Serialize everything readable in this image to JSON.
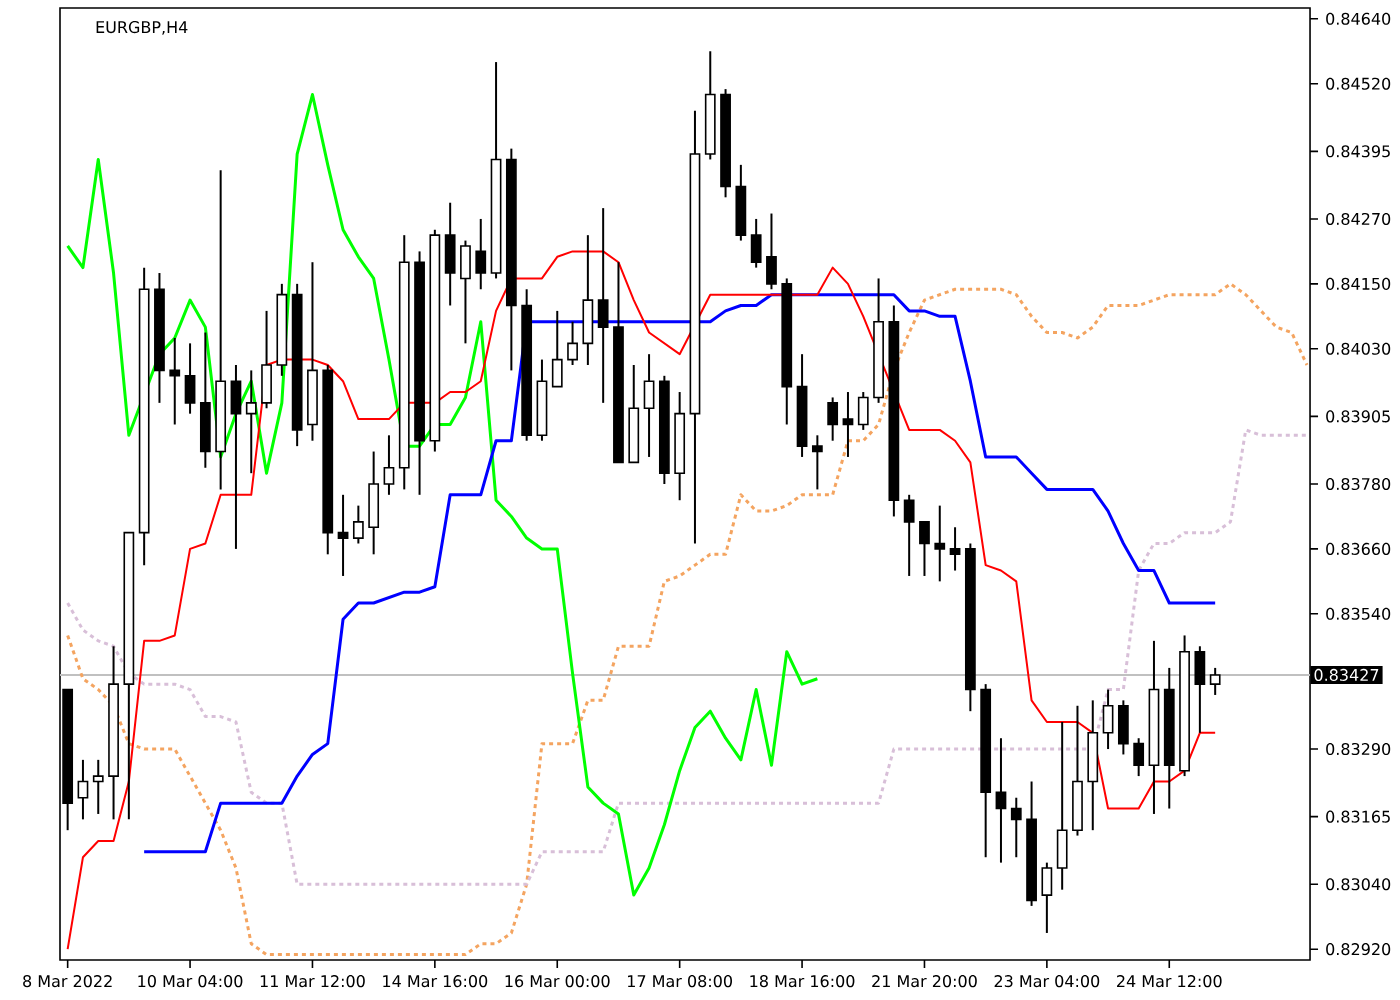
{
  "chart_data": {
    "type": "candlestick",
    "title": "EURGBP,H4",
    "categories": [
      "8 Mar 2022",
      null,
      null,
      null,
      null,
      null,
      null,
      null,
      "10 Mar 04:00",
      null,
      null,
      null,
      null,
      null,
      null,
      null,
      "11 Mar 12:00",
      null,
      null,
      null,
      null,
      null,
      null,
      null,
      "14 Mar 16:00",
      null,
      null,
      null,
      null,
      null,
      null,
      null,
      "16 Mar 00:00",
      null,
      null,
      null,
      null,
      null,
      null,
      null,
      "17 Mar 08:00",
      null,
      null,
      null,
      null,
      null,
      null,
      null,
      "18 Mar 16:00",
      null,
      null,
      null,
      null,
      null,
      null,
      null,
      "21 Mar 20:00",
      null,
      null,
      null,
      null,
      null,
      null,
      null,
      "23 Mar 04:00",
      null,
      null,
      null,
      null,
      null,
      null,
      null,
      "24 Mar 12:00",
      null,
      null,
      null,
      null,
      null,
      null,
      null,
      null,
      null
    ],
    "ohlc": [
      [
        0.834,
        0.834,
        0.8314,
        0.8319
      ],
      [
        0.832,
        0.8327,
        0.8316,
        0.8323
      ],
      [
        0.8323,
        0.8327,
        0.8317,
        0.8324
      ],
      [
        0.8324,
        0.8348,
        0.8316,
        0.8341
      ],
      [
        0.8341,
        0.8369,
        0.8316,
        0.8369
      ],
      [
        0.8369,
        0.8418,
        0.8363,
        0.8414
      ],
      [
        0.8414,
        0.8417,
        0.8393,
        0.8399
      ],
      [
        0.8399,
        0.8405,
        0.8389,
        0.8398
      ],
      [
        0.8398,
        0.8404,
        0.8391,
        0.8393
      ],
      [
        0.8393,
        0.8406,
        0.8381,
        0.8384
      ],
      [
        0.8384,
        0.8436,
        0.8377,
        0.8397
      ],
      [
        0.8397,
        0.84,
        0.8366,
        0.8391
      ],
      [
        0.8391,
        0.8399,
        0.838,
        0.8393
      ],
      [
        0.8393,
        0.841,
        0.8392,
        0.84
      ],
      [
        0.84,
        0.8415,
        0.8398,
        0.8413
      ],
      [
        0.8413,
        0.8415,
        0.8385,
        0.8388
      ],
      [
        0.8389,
        0.8419,
        0.8386,
        0.8399
      ],
      [
        0.8399,
        0.84,
        0.8365,
        0.8369
      ],
      [
        0.8369,
        0.8376,
        0.8361,
        0.8368
      ],
      [
        0.8368,
        0.8374,
        0.8367,
        0.8371
      ],
      [
        0.837,
        0.8384,
        0.8365,
        0.8378
      ],
      [
        0.8378,
        0.8387,
        0.8376,
        0.8381
      ],
      [
        0.8381,
        0.8424,
        0.8377,
        0.8419
      ],
      [
        0.8419,
        0.8421,
        0.8376,
        0.8386
      ],
      [
        0.8386,
        0.8425,
        0.8384,
        0.8424
      ],
      [
        0.8424,
        0.843,
        0.8411,
        0.8417
      ],
      [
        0.8416,
        0.8423,
        0.8404,
        0.8422
      ],
      [
        0.8421,
        0.8427,
        0.8414,
        0.8417
      ],
      [
        0.8417,
        0.8456,
        0.8416,
        0.8438
      ],
      [
        0.8438,
        0.844,
        0.8399,
        0.8411
      ],
      [
        0.8411,
        0.8414,
        0.8386,
        0.8387
      ],
      [
        0.8387,
        0.8401,
        0.8386,
        0.8397
      ],
      [
        0.8396,
        0.841,
        0.8396,
        0.8401
      ],
      [
        0.8401,
        0.8408,
        0.84,
        0.8404
      ],
      [
        0.8404,
        0.8424,
        0.84,
        0.8412
      ],
      [
        0.8412,
        0.8429,
        0.8393,
        0.8407
      ],
      [
        0.8407,
        0.8419,
        0.8382,
        0.8382
      ],
      [
        0.8382,
        0.84,
        0.8382,
        0.8392
      ],
      [
        0.8392,
        0.8402,
        0.8383,
        0.8397
      ],
      [
        0.8397,
        0.8398,
        0.8378,
        0.838
      ],
      [
        0.838,
        0.8395,
        0.8375,
        0.8391
      ],
      [
        0.8391,
        0.8447,
        0.8367,
        0.8439
      ],
      [
        0.8439,
        0.8458,
        0.8438,
        0.845
      ],
      [
        0.845,
        0.8451,
        0.8431,
        0.8433
      ],
      [
        0.8433,
        0.8437,
        0.8423,
        0.8424
      ],
      [
        0.8424,
        0.8427,
        0.8418,
        0.8419
      ],
      [
        0.842,
        0.8428,
        0.8414,
        0.8415
      ],
      [
        0.8415,
        0.8416,
        0.8389,
        0.8396
      ],
      [
        0.8396,
        0.8402,
        0.8383,
        0.8385
      ],
      [
        0.8385,
        0.8387,
        0.8377,
        0.8384
      ],
      [
        0.8393,
        0.8394,
        0.8386,
        0.8389
      ],
      [
        0.839,
        0.8395,
        0.8383,
        0.8389
      ],
      [
        0.8389,
        0.8395,
        0.8388,
        0.8394
      ],
      [
        0.8394,
        0.8416,
        0.8393,
        0.8408
      ],
      [
        0.8408,
        0.8411,
        0.8372,
        0.8375
      ],
      [
        0.8375,
        0.8376,
        0.8361,
        0.8371
      ],
      [
        0.8371,
        0.8371,
        0.8361,
        0.8367
      ],
      [
        0.8367,
        0.8374,
        0.836,
        0.8366
      ],
      [
        0.8366,
        0.837,
        0.8362,
        0.8365
      ],
      [
        0.8366,
        0.8367,
        0.8336,
        0.834
      ],
      [
        0.834,
        0.8341,
        0.8309,
        0.8321
      ],
      [
        0.8321,
        0.8331,
        0.8308,
        0.8318
      ],
      [
        0.8318,
        0.832,
        0.8309,
        0.8316
      ],
      [
        0.8316,
        0.8323,
        0.83,
        0.8301
      ],
      [
        0.8302,
        0.8308,
        0.8295,
        0.8307
      ],
      [
        0.8307,
        0.8334,
        0.8303,
        0.8314
      ],
      [
        0.8314,
        0.8337,
        0.8313,
        0.8323
      ],
      [
        0.8323,
        0.8338,
        0.8314,
        0.8332
      ],
      [
        0.8332,
        0.834,
        0.8329,
        0.8337
      ],
      [
        0.8337,
        0.8338,
        0.8328,
        0.833
      ],
      [
        0.833,
        0.8331,
        0.8324,
        0.8326
      ],
      [
        0.8326,
        0.8349,
        0.8317,
        0.834
      ],
      [
        0.834,
        0.8344,
        0.8318,
        0.8326
      ],
      [
        0.8325,
        0.835,
        0.8324,
        0.8347
      ],
      [
        0.8347,
        0.8348,
        0.8332,
        0.8341
      ],
      [
        0.8341,
        0.8344,
        0.8339,
        0.83427
      ],
      null,
      null,
      null,
      null,
      null,
      null
    ],
    "series": [
      {
        "type": "line",
        "color": "#f4a460",
        "line_style": "dashed",
        "values": [
          0.835,
          0.8342,
          0.834,
          0.8337,
          0.833,
          0.8329,
          0.8329,
          0.8329,
          0.8324,
          0.8319,
          0.8314,
          0.8307,
          0.8293,
          0.8291,
          0.8291,
          0.8291,
          0.8291,
          0.8291,
          0.8291,
          0.8291,
          0.8291,
          0.8291,
          0.8291,
          0.8291,
          0.8291,
          0.8291,
          0.8291,
          0.8293,
          0.8293,
          0.8295,
          0.8304,
          0.833,
          0.833,
          0.833,
          0.8338,
          0.8338,
          0.8348,
          0.8348,
          0.8348,
          0.836,
          0.8361,
          0.8363,
          0.8365,
          0.8365,
          0.8376,
          0.8373,
          0.8373,
          0.8374,
          0.8376,
          0.8376,
          0.8376,
          0.8386,
          0.8386,
          0.8389,
          0.8399,
          0.8406,
          0.8412,
          0.8413,
          0.8414,
          0.8414,
          0.8414,
          0.8414,
          0.8413,
          0.8409,
          0.8406,
          0.8406,
          0.8405,
          0.8407,
          0.8411,
          0.8411,
          0.8411,
          0.8412,
          0.8413,
          0.8413,
          0.8413,
          0.8413,
          0.8415,
          0.8413,
          0.841,
          0.8407,
          0.8406,
          0.84
        ]
      },
      {
        "type": "line",
        "color": "#d8bfd8",
        "line_style": "dashed",
        "values": [
          0.8356,
          0.8351,
          0.8349,
          0.8348,
          0.8343,
          0.8341,
          0.8341,
          0.8341,
          0.834,
          0.8335,
          0.8335,
          0.8334,
          0.8321,
          0.8319,
          0.8319,
          0.8304,
          0.8304,
          0.8304,
          0.8304,
          0.8304,
          0.8304,
          0.8304,
          0.8304,
          0.8304,
          0.8304,
          0.8304,
          0.8304,
          0.8304,
          0.8304,
          0.8304,
          0.8304,
          0.831,
          0.831,
          0.831,
          0.831,
          0.831,
          0.8319,
          0.8319,
          0.8319,
          0.8319,
          0.8319,
          0.8319,
          0.8319,
          0.8319,
          0.8319,
          0.8319,
          0.8319,
          0.8319,
          0.8319,
          0.8319,
          0.8319,
          0.8319,
          0.8319,
          0.8319,
          0.8329,
          0.8329,
          0.8329,
          0.8329,
          0.8329,
          0.8329,
          0.8329,
          0.8329,
          0.8329,
          0.8329,
          0.8329,
          0.8329,
          0.8329,
          0.8329,
          0.834,
          0.834,
          0.8362,
          0.8367,
          0.8367,
          0.8369,
          0.8369,
          0.8369,
          0.8371,
          0.8388,
          0.8387,
          0.8387,
          0.8387,
          0.8387
        ]
      },
      {
        "type": "line",
        "color": "#00ff00",
        "line_style": "solid",
        "values": [
          0.8422,
          0.8418,
          0.8438,
          0.8417,
          0.8387,
          null,
          0.8402,
          0.8405,
          0.8412,
          0.8407,
          0.8383,
          0.8391,
          0.8397,
          0.838,
          0.8393,
          0.8439,
          0.845,
          0.8437,
          0.8425,
          0.842,
          0.8416,
          0.8401,
          0.8385,
          0.8385,
          0.8389,
          0.8389,
          0.8394,
          0.8408,
          0.8375,
          0.8372,
          0.8368,
          0.8366,
          0.8366,
          0.8343,
          0.8322,
          0.8319,
          0.8317,
          0.8302,
          0.8307,
          0.8315,
          0.8325,
          0.8333,
          0.8336,
          0.8331,
          0.8327,
          0.834,
          0.8326,
          0.8347,
          0.8341,
          0.8342,
          null,
          null,
          null,
          null,
          null,
          null,
          null,
          null,
          null,
          null,
          null,
          null,
          null,
          null,
          null,
          null,
          null,
          null,
          null,
          null,
          null,
          null,
          null,
          null,
          null,
          null,
          null,
          null,
          null,
          null,
          null,
          null
        ]
      },
      {
        "type": "line",
        "color": "#0000ff",
        "line_style": "solid",
        "values": [
          null,
          null,
          null,
          null,
          null,
          0.831,
          0.831,
          0.831,
          0.831,
          0.831,
          0.8319,
          0.8319,
          0.8319,
          0.8319,
          0.8319,
          0.8324,
          0.8328,
          0.833,
          0.8353,
          0.8356,
          0.8356,
          0.8357,
          0.8358,
          0.8358,
          0.8359,
          0.8376,
          0.8376,
          0.8376,
          0.8386,
          0.8386,
          0.8408,
          0.8408,
          0.8408,
          0.8408,
          0.8408,
          0.8408,
          0.8408,
          0.8408,
          0.8408,
          0.8408,
          0.8408,
          0.8408,
          0.8408,
          0.841,
          0.8411,
          0.8411,
          0.8413,
          null,
          0.8413,
          0.8413,
          0.8413,
          0.8413,
          0.8413,
          0.8413,
          0.8413,
          0.841,
          0.841,
          0.8409,
          0.8409,
          0.8397,
          0.8383,
          0.8383,
          0.8383,
          0.838,
          0.8377,
          0.8377,
          0.8377,
          0.8377,
          0.8373,
          0.8367,
          0.8362,
          0.8362,
          0.8356,
          0.8356,
          0.8356,
          0.8356,
          null,
          null,
          null,
          null,
          null,
          null
        ]
      },
      {
        "type": "line",
        "color": "#ff0000",
        "line_style": "solid",
        "values": [
          0.8292,
          0.8309,
          0.8312,
          0.8312,
          0.8323,
          0.8349,
          0.8349,
          0.835,
          0.8366,
          0.8367,
          0.8376,
          0.8376,
          0.8376,
          0.84,
          0.8401,
          0.8401,
          0.8401,
          0.84,
          0.8397,
          0.839,
          0.839,
          0.839,
          0.8393,
          0.8393,
          0.8393,
          0.8395,
          0.8395,
          0.8397,
          0.841,
          0.8416,
          0.8416,
          0.8416,
          0.842,
          0.8421,
          0.8421,
          0.8421,
          0.8419,
          0.8412,
          0.8406,
          0.8404,
          0.8402,
          null,
          0.8413,
          0.8413,
          0.8413,
          0.8413,
          0.8413,
          0.8413,
          0.8413,
          0.8413,
          0.8418,
          0.8415,
          0.8409,
          null,
          null,
          0.8388,
          0.8388,
          0.8388,
          0.8386,
          0.8382,
          0.8363,
          0.8362,
          0.836,
          0.8338,
          0.8334,
          0.8334,
          0.8334,
          0.8332,
          0.8318,
          0.8318,
          0.8318,
          0.8323,
          0.8323,
          0.8325,
          0.8332,
          0.8332,
          null,
          null,
          null,
          null,
          null,
          null
        ]
      }
    ],
    "ylim": [
      0.829,
      0.8466
    ],
    "yticks": [
      {
        "value": 0.8464,
        "label": "0.84640"
      },
      {
        "value": 0.8452,
        "label": "0.84520"
      },
      {
        "value": 0.84395,
        "label": "0.84395"
      },
      {
        "value": 0.8427,
        "label": "0.84270"
      },
      {
        "value": 0.8415,
        "label": "0.84150"
      },
      {
        "value": 0.8403,
        "label": "0.84030"
      },
      {
        "value": 0.83905,
        "label": "0.83905"
      },
      {
        "value": 0.8378,
        "label": "0.83780"
      },
      {
        "value": 0.8366,
        "label": "0.83660"
      },
      {
        "value": 0.8354,
        "label": "0.83540"
      },
      {
        "value": 0.8329,
        "label": "0.83290"
      },
      {
        "value": 0.83165,
        "label": "0.83165"
      },
      {
        "value": 0.8304,
        "label": "0.83040"
      },
      {
        "value": 0.8292,
        "label": "0.82920"
      }
    ],
    "ref_lines": [
      {
        "axis": "y",
        "value": 0.83427,
        "label": "0.83427",
        "color": "#c0c0c0"
      }
    ]
  }
}
